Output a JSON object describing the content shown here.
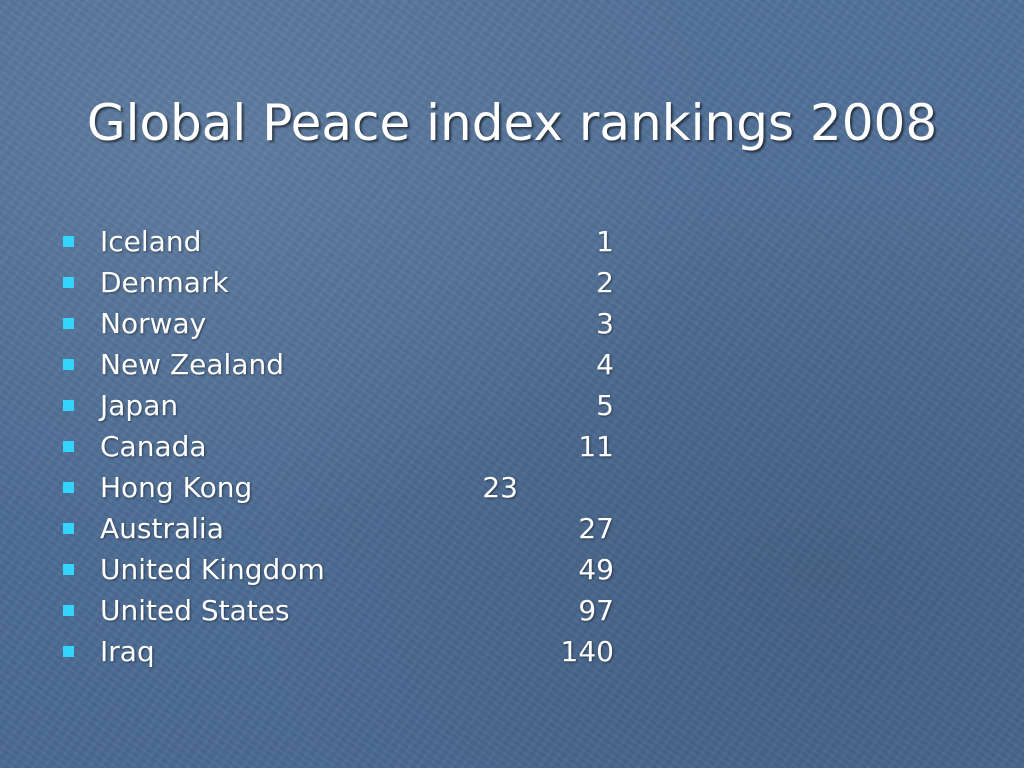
{
  "slide": {
    "title": "Global Peace index rankings 2008"
  },
  "rankings": [
    {
      "country": "Iceland",
      "rank": "1"
    },
    {
      "country": "Denmark",
      "rank": "2"
    },
    {
      "country": "Norway",
      "rank": "3"
    },
    {
      "country": "New Zealand",
      "rank": "4"
    },
    {
      "country": "Japan",
      "rank": "5"
    },
    {
      "country": "Canada",
      "rank": "11"
    },
    {
      "country": "Hong Kong",
      "rank": "23"
    },
    {
      "country": "Australia",
      "rank": "27"
    },
    {
      "country": "United Kingdom",
      "rank": "49"
    },
    {
      "country": "United States",
      "rank": "97"
    },
    {
      "country": "Iraq",
      "rank": "140"
    }
  ],
  "colors": {
    "background": "#4f6f96",
    "text": "#ffffff",
    "bullet": "#33d5ff"
  }
}
